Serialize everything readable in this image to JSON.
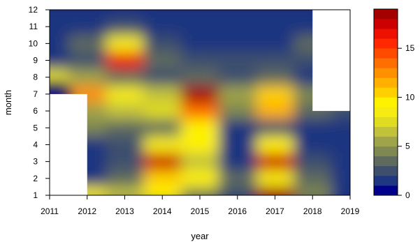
{
  "chart_data": {
    "type": "heatmap",
    "xlabel": "year",
    "ylabel": "month",
    "xlim": [
      2011,
      2019
    ],
    "ylim": [
      1,
      12
    ],
    "x_ticks": [
      "2011",
      "2012",
      "2013",
      "2014",
      "2015",
      "2016",
      "2017",
      "2018",
      "2019"
    ],
    "y_ticks": [
      "1",
      "2",
      "3",
      "4",
      "5",
      "6",
      "7",
      "8",
      "9",
      "10",
      "11",
      "12"
    ],
    "colorbar": {
      "range": [
        0,
        19
      ],
      "levels": [
        0,
        1,
        2,
        3,
        4,
        5,
        6,
        7,
        8,
        9,
        10,
        11,
        12,
        13,
        14,
        15,
        16,
        17,
        18,
        19
      ],
      "ticks": [
        "0",
        "5",
        "10",
        "15"
      ],
      "colors": [
        "#00008B",
        "#1F3680",
        "#3E4F6E",
        "#5E6A5E",
        "#7F8850",
        "#A0A448",
        "#C2C23A",
        "#E0DC1F",
        "#F6EC12",
        "#FFF200",
        "#FFD000",
        "#FFB000",
        "#FF9000",
        "#FF6E00",
        "#FF4B00",
        "#FF2800",
        "#EE1000",
        "#CC0000",
        "#A40000"
      ]
    },
    "years": [
      2011,
      2012,
      2013,
      2014,
      2015,
      2016,
      2017,
      2018,
      2019
    ],
    "months": [
      1,
      2,
      3,
      4,
      5,
      6,
      7,
      8,
      9,
      10,
      11,
      12
    ],
    "values": [
      [
        null,
        8,
        6,
        9,
        4,
        2,
        19,
        4,
        1
      ],
      [
        null,
        1,
        3,
        10,
        9,
        3,
        8,
        3,
        1
      ],
      [
        null,
        1,
        2,
        17,
        6,
        1,
        17,
        2,
        1
      ],
      [
        null,
        1,
        2,
        8,
        9,
        1,
        9,
        1,
        1
      ],
      [
        null,
        4,
        3,
        3,
        9,
        1,
        2,
        1,
        1
      ],
      [
        null,
        5,
        6,
        7,
        13,
        4,
        11,
        3,
        2
      ],
      [
        null,
        12,
        8,
        6,
        18,
        5,
        10,
        4,
        3
      ],
      [
        7,
        5,
        3,
        2,
        3,
        2,
        3,
        1,
        null
      ],
      [
        1,
        2,
        16,
        3,
        2,
        2,
        2,
        2,
        null
      ],
      [
        1,
        3,
        8,
        2,
        1,
        1,
        1,
        3,
        null
      ],
      [
        1,
        1,
        2,
        1,
        1,
        1,
        1,
        1,
        null
      ],
      [
        1,
        1,
        1,
        1,
        1,
        1,
        1,
        1,
        null
      ]
    ]
  }
}
